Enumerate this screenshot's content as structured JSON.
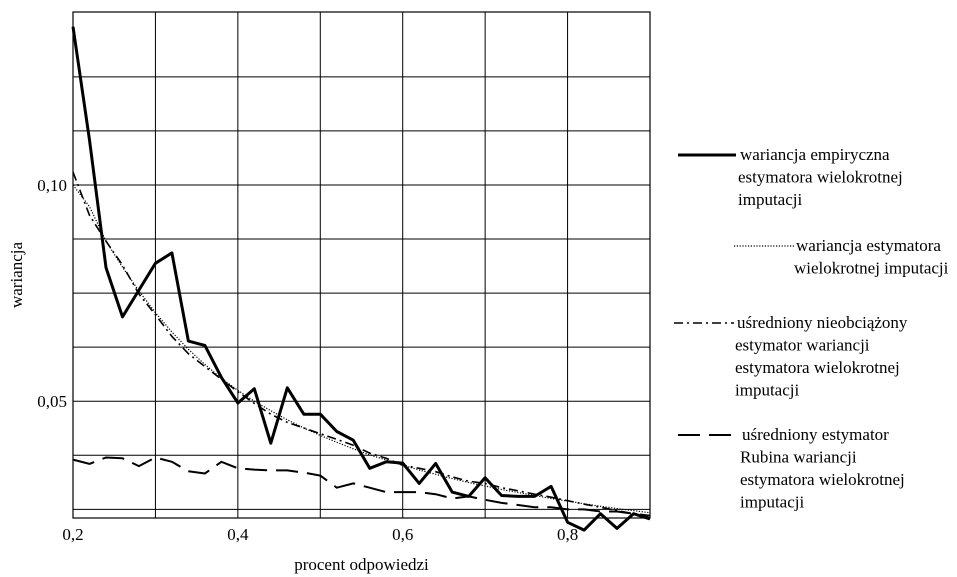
{
  "chart_data": {
    "type": "line",
    "title": "",
    "xlabel": "procent odpowiedzi",
    "ylabel": "wariancja",
    "xlim": [
      0.2,
      0.9
    ],
    "ylim": [
      0.023,
      0.14
    ],
    "grid": true,
    "legend_position": "right",
    "x_ticks": [
      {
        "value": 0.2,
        "label": "0,2"
      },
      {
        "value": 0.4,
        "label": "0,4"
      },
      {
        "value": 0.6,
        "label": "0,6"
      },
      {
        "value": 0.8,
        "label": "0,8"
      }
    ],
    "y_ticks": [
      {
        "value": 0.05,
        "label": "0,05"
      },
      {
        "value": 0.1,
        "label": "0,10"
      }
    ],
    "x_gridlines": [
      0.2,
      0.3,
      0.4,
      0.5,
      0.6,
      0.7,
      0.8,
      0.9
    ],
    "y_gridlines": [
      0.025,
      0.0375,
      0.05,
      0.0625,
      0.075,
      0.0875,
      0.1,
      0.1125,
      0.125
    ],
    "series": [
      {
        "name": "wariancja empiryczna estymatora wielokrotnej imputacji",
        "legend_lines": [
          "wariancja empiryczna",
          "estymatora wielokrotnej",
          "imputacji"
        ],
        "style": "solid",
        "x": [
          0.2,
          0.22,
          0.24,
          0.26,
          0.28,
          0.3,
          0.32,
          0.34,
          0.36,
          0.38,
          0.4,
          0.42,
          0.44,
          0.46,
          0.48,
          0.5,
          0.52,
          0.54,
          0.56,
          0.58,
          0.6,
          0.62,
          0.64,
          0.66,
          0.68,
          0.7,
          0.72,
          0.74,
          0.76,
          0.78,
          0.8,
          0.82,
          0.84,
          0.86,
          0.88,
          0.9
        ],
        "values": [
          0.1366,
          0.1104,
          0.0809,
          0.0695,
          0.0757,
          0.0819,
          0.0843,
          0.0639,
          0.0629,
          0.0555,
          0.0496,
          0.0529,
          0.0403,
          0.0531,
          0.047,
          0.047,
          0.043,
          0.041,
          0.0345,
          0.036,
          0.0357,
          0.031,
          0.0356,
          0.029,
          0.028,
          0.0323,
          0.0282,
          0.028,
          0.028,
          0.0303,
          0.022,
          0.0202,
          0.024,
          0.0206,
          0.024,
          0.0228
        ]
      },
      {
        "name": "wariancja estymatora wielokrotnej imputacji",
        "legend_lines": [
          "wariancja estymatora",
          "wielokrotnej imputacji"
        ],
        "style": "dotted",
        "x": [
          0.2,
          0.22,
          0.24,
          0.26,
          0.28,
          0.3,
          0.32,
          0.34,
          0.36,
          0.38,
          0.4,
          0.42,
          0.44,
          0.46,
          0.48,
          0.5,
          0.52,
          0.54,
          0.56,
          0.58,
          0.6,
          0.62,
          0.64,
          0.66,
          0.68,
          0.7,
          0.72,
          0.74,
          0.76,
          0.78,
          0.8,
          0.82,
          0.84,
          0.86,
          0.88,
          0.9
        ],
        "values": [
          0.1,
          0.095,
          0.087,
          0.081,
          0.0755,
          0.0705,
          0.066,
          0.062,
          0.0585,
          0.0553,
          0.0525,
          0.05,
          0.0478,
          0.0457,
          0.0438,
          0.0421,
          0.0405,
          0.039,
          0.0376,
          0.0364,
          0.0352,
          0.0341,
          0.0331,
          0.0321,
          0.0312,
          0.0304,
          0.0296,
          0.0289,
          0.0282,
          0.0275,
          0.0269,
          0.0263,
          0.0257,
          0.0252,
          0.0247,
          0.0242
        ]
      },
      {
        "name": "uśredniony nieobciążony estymator wariancji estymatora wielokrotnej imputacji",
        "legend_lines": [
          "uśredniony nieobciążony",
          "estymator wariancji",
          "estymatora wielokrotnej",
          "imputacji"
        ],
        "style": "dashdot",
        "x": [
          0.2,
          0.22,
          0.24,
          0.26,
          0.28,
          0.3,
          0.32,
          0.34,
          0.36,
          0.38,
          0.4,
          0.42,
          0.44,
          0.46,
          0.48,
          0.5,
          0.52,
          0.54,
          0.56,
          0.58,
          0.6,
          0.62,
          0.64,
          0.66,
          0.68,
          0.7,
          0.72,
          0.74,
          0.76,
          0.78,
          0.8,
          0.82,
          0.84,
          0.86,
          0.88,
          0.9
        ],
        "values": [
          0.103,
          0.093,
          0.087,
          0.0815,
          0.0748,
          0.07,
          0.065,
          0.061,
          0.058,
          0.0551,
          0.0522,
          0.0495,
          0.047,
          0.0451,
          0.0438,
          0.0425,
          0.0412,
          0.0398,
          0.038,
          0.0368,
          0.0352,
          0.0345,
          0.0337,
          0.0325,
          0.0315,
          0.031,
          0.03,
          0.0293,
          0.0285,
          0.0278,
          0.027,
          0.0262,
          0.0255,
          0.0247,
          0.024,
          0.0232
        ]
      },
      {
        "name": "uśredniony estymator Rubina wariancji estymatora wielokrotnej imputacji",
        "legend_lines": [
          "uśredniony estymator",
          "Rubina wariancji",
          "estymatora wielokrotnej",
          "imputacji"
        ],
        "style": "dashed",
        "x": [
          0.2,
          0.22,
          0.24,
          0.26,
          0.28,
          0.3,
          0.32,
          0.34,
          0.36,
          0.38,
          0.4,
          0.42,
          0.44,
          0.46,
          0.48,
          0.5,
          0.52,
          0.54,
          0.56,
          0.58,
          0.6,
          0.62,
          0.64,
          0.66,
          0.68,
          0.7,
          0.72,
          0.74,
          0.76,
          0.78,
          0.8,
          0.82,
          0.84,
          0.86,
          0.88,
          0.9
        ],
        "values": [
          0.0365,
          0.0355,
          0.037,
          0.0368,
          0.035,
          0.037,
          0.036,
          0.0338,
          0.0333,
          0.036,
          0.0345,
          0.0342,
          0.034,
          0.034,
          0.0335,
          0.0328,
          0.03,
          0.031,
          0.03,
          0.029,
          0.029,
          0.029,
          0.0285,
          0.0275,
          0.028,
          0.0272,
          0.0265,
          0.026,
          0.0255,
          0.0255,
          0.025,
          0.025,
          0.0245,
          0.0245,
          0.024,
          0.0235
        ]
      }
    ]
  }
}
